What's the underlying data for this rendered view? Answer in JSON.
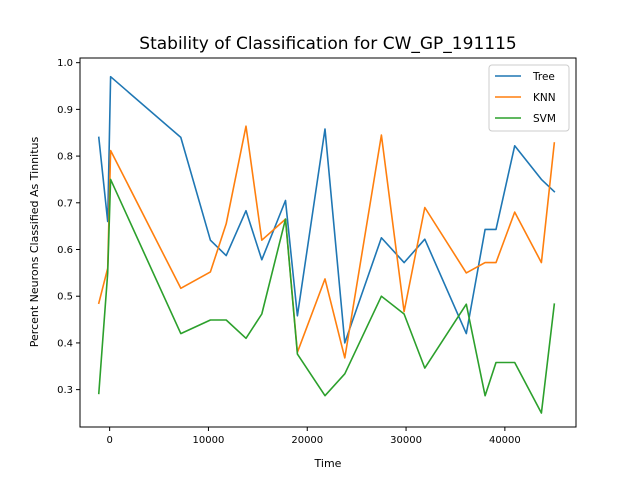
{
  "chart_data": {
    "type": "line",
    "title": "Stability of Classification for CW_GP_191115",
    "xlabel": "Time",
    "ylabel": "Percent Neurons Classified As Tinnitus",
    "xlim": [
      -3000,
      47200
    ],
    "ylim": [
      0.22,
      1.01
    ],
    "x_ticks": [
      0,
      10000,
      20000,
      30000,
      40000
    ],
    "y_ticks": [
      0.3,
      0.4,
      0.5,
      0.6,
      0.7,
      0.8,
      0.9,
      1.0
    ],
    "x_tick_labels": [
      "0",
      "10000",
      "20000",
      "30000",
      "40000"
    ],
    "y_tick_labels": [
      "0.3",
      "0.4",
      "0.5",
      "0.6",
      "0.7",
      "0.8",
      "0.9",
      "1.0"
    ],
    "grid": false,
    "legend_position": "top-right",
    "x": [
      -1100,
      -200,
      100,
      7200,
      10200,
      11800,
      13800,
      15400,
      17800,
      19000,
      21800,
      23800,
      27500,
      29800,
      31900,
      36100,
      38000,
      39100,
      41000,
      43700,
      45000
    ],
    "series": [
      {
        "name": "Tree",
        "color": "#1f77b4",
        "values": [
          0.84,
          0.66,
          0.97,
          0.84,
          0.62,
          0.587,
          0.683,
          0.578,
          0.705,
          0.458,
          0.858,
          0.4,
          0.625,
          0.572,
          0.622,
          0.42,
          0.643,
          0.643,
          0.822,
          0.75,
          0.724
        ]
      },
      {
        "name": "KNN",
        "color": "#ff7f0e",
        "values": [
          0.485,
          0.56,
          0.812,
          0.517,
          0.552,
          0.655,
          0.864,
          0.62,
          0.665,
          0.38,
          0.537,
          0.368,
          0.845,
          0.467,
          0.69,
          0.55,
          0.572,
          0.572,
          0.68,
          0.572,
          0.828
        ]
      },
      {
        "name": "SVM",
        "color": "#2ca02c",
        "values": [
          0.292,
          0.55,
          0.75,
          0.42,
          0.449,
          0.449,
          0.41,
          0.462,
          0.665,
          0.376,
          0.287,
          0.334,
          0.5,
          0.462,
          0.346,
          0.483,
          0.287,
          0.358,
          0.358,
          0.25,
          0.483
        ]
      }
    ]
  }
}
